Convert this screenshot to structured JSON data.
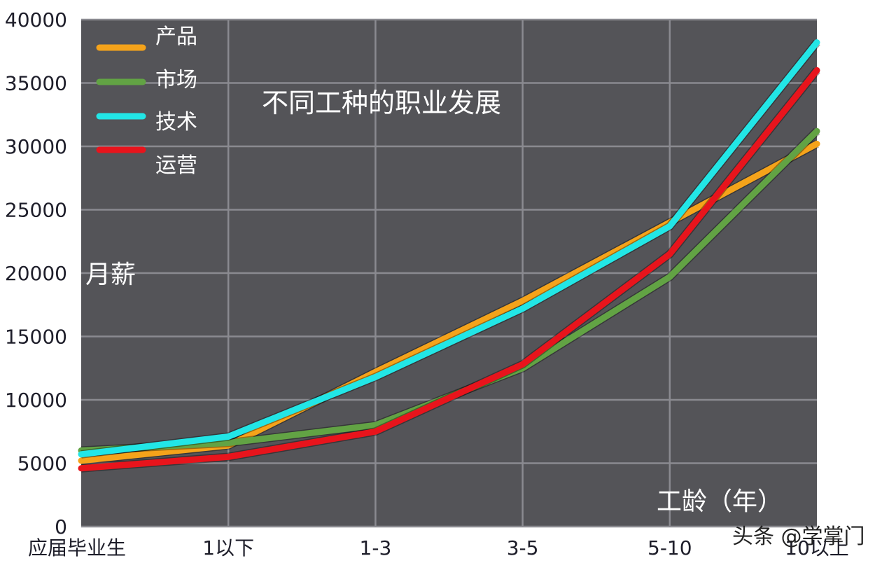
{
  "chart_data": {
    "type": "line",
    "title": "不同工种的职业发展",
    "xlabel": "工龄（年）",
    "ylabel": "月薪",
    "categories": [
      "应届毕业生",
      "1以下",
      "1-3",
      "3-5",
      "5-10",
      "10以上"
    ],
    "ylim": [
      0,
      40000
    ],
    "yticks": [
      0,
      5000,
      10000,
      15000,
      20000,
      25000,
      30000,
      35000,
      40000
    ],
    "grid": true,
    "legend_position": "upper-left",
    "series": [
      {
        "name": "产品",
        "color": "#f5a31a",
        "values": [
          5200,
          6400,
          12200,
          17800,
          24000,
          30200
        ]
      },
      {
        "name": "市场",
        "color": "#62a344",
        "values": [
          6000,
          6600,
          8000,
          12500,
          19700,
          31200
        ]
      },
      {
        "name": "技术",
        "color": "#22e6e6",
        "values": [
          5700,
          7100,
          11800,
          17200,
          23700,
          38200
        ]
      },
      {
        "name": "运营",
        "color": "#e8141c",
        "values": [
          4600,
          5500,
          7500,
          12800,
          21500,
          36000
        ]
      }
    ]
  },
  "labels": {
    "title": "不同工种的职业发展",
    "ylabel": "月薪",
    "xlabel": "工龄（年）",
    "watermark": "头条 @学掌门",
    "yticks": [
      "0",
      "5000",
      "10000",
      "15000",
      "20000",
      "25000",
      "30000",
      "35000",
      "40000"
    ],
    "xticks": [
      "应届毕业生",
      "1以下",
      "1-3",
      "3-5",
      "5-10",
      "10以上"
    ],
    "legend": [
      "产品",
      "市场",
      "技术",
      "运营"
    ]
  },
  "colors": {
    "plot_bg": "#545458",
    "grid": "#8a8a90",
    "product": "#f5a31a",
    "market": "#62a344",
    "tech": "#22e6e6",
    "ops": "#e8141c"
  }
}
